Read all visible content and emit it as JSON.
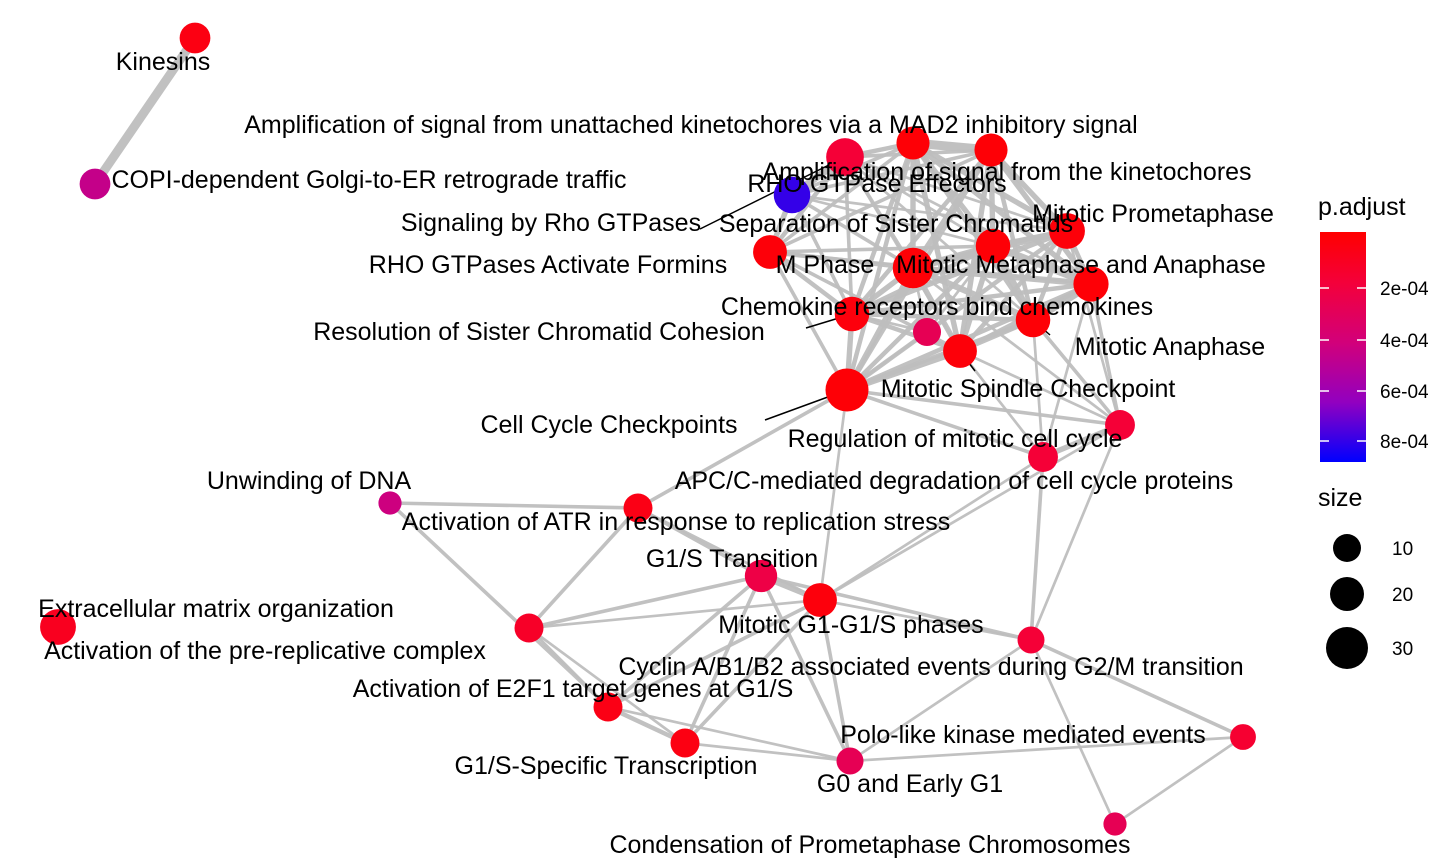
{
  "legend": {
    "color_title": "p.adjust",
    "color_ticks": [
      "2e-04",
      "4e-04",
      "6e-04",
      "8e-04"
    ],
    "size_title": "size",
    "size_ticks": [
      "10",
      "20",
      "30"
    ]
  },
  "colors": {
    "edge": "#bebebe",
    "label": "#000000",
    "gradient_low": "#ff0000",
    "gradient_high": "#0000ff"
  },
  "nodes": [
    {
      "id": "kinesins",
      "label": "Kinesins",
      "p": 8e-05,
      "size": 10
    },
    {
      "id": "copi",
      "label": "COPI-dependent Golgi-to-ER retrograde traffic",
      "p": 0.00048,
      "size": 10
    },
    {
      "id": "amp_mad2",
      "label": "Amplification  of signal from unattached  kinetochores via a MAD2  inhibitory signal",
      "p": 4e-05,
      "size": 13
    },
    {
      "id": "amp_kin",
      "label": "Amplification of signal from the kinetochores",
      "p": 4e-05,
      "size": 13
    },
    {
      "id": "rho_eff",
      "label": "RHO GTPase Effectors",
      "p": 0.0008,
      "size": 18
    },
    {
      "id": "sig_rho",
      "label": "Signaling by Rho GTPases",
      "p": 0.0002,
      "size": 20
    },
    {
      "id": "sep_sister",
      "label": "Separation of Sister Chromatids",
      "p": 4e-05,
      "size": 15
    },
    {
      "id": "mit_prometa",
      "label": "Mitotic Prometaphase",
      "p": 5e-05,
      "size": 17
    },
    {
      "id": "rho_formins",
      "label": "RHO GTPases Activate Formins",
      "p": 5e-05,
      "size": 14
    },
    {
      "id": "m_phase",
      "label": "M Phase",
      "p": 4e-05,
      "size": 25
    },
    {
      "id": "mit_meta",
      "label": "Mitotic Metaphase and Anaphase",
      "p": 4e-05,
      "size": 16
    },
    {
      "id": "chemokine",
      "label": "Chemokine receptors bind chemokines",
      "p": 0.0003,
      "size": 7
    },
    {
      "id": "res_sister",
      "label": "Resolution of Sister Chromatid Cohesion",
      "p": 6e-05,
      "size": 15
    },
    {
      "id": "mit_ana",
      "label": "Mitotic Anaphase",
      "p": 4e-05,
      "size": 15
    },
    {
      "id": "spindle",
      "label": "Mitotic Spindle Checkpoint",
      "p": 5e-05,
      "size": 14
    },
    {
      "id": "cc_check",
      "label": "Cell Cycle Checkpoints",
      "p": 4e-05,
      "size": 30
    },
    {
      "id": "reg_mit",
      "label": "Regulation of mitotic cell cycle",
      "p": 0.0002,
      "size": 9
    },
    {
      "id": "apc",
      "label": "APC/C-mediated degradation of cell cycle proteins",
      "p": 0.0002,
      "size": 9
    },
    {
      "id": "unwind",
      "label": "Unwinding of DNA",
      "p": 0.00045,
      "size": 3
    },
    {
      "id": "atr",
      "label": "Activation of ATR in response to replication stress",
      "p": 9e-05,
      "size": 8
    },
    {
      "id": "g1s_trans",
      "label": "G1/S Transition",
      "p": 0.00025,
      "size": 12
    },
    {
      "id": "ecm",
      "label": "Extracellular matrix organization",
      "p": 0.00012,
      "size": 17
    },
    {
      "id": "pre_rep",
      "label": "Activation of the pre-replicative complex",
      "p": 0.00015,
      "size": 8
    },
    {
      "id": "mit_g1",
      "label": "Mitotic G1-G1/S phases",
      "p": 6e-05,
      "size": 14
    },
    {
      "id": "cyclin",
      "label": "Cyclin A/B1/B2 associated events during G2/M transition",
      "p": 0.0002,
      "size": 6
    },
    {
      "id": "e2f1",
      "label": "Activation of E2F1 target genes at G1/S",
      "p": 9e-05,
      "size": 8
    },
    {
      "id": "polo",
      "label": "Polo-like kinase mediated events",
      "p": 0.00018,
      "size": 5
    },
    {
      "id": "g1s_spec",
      "label": "G1/S-Specific Transcription",
      "p": 8e-05,
      "size": 8
    },
    {
      "id": "g0",
      "label": "G0 and Early G1",
      "p": 0.0003,
      "size": 6
    },
    {
      "id": "condens",
      "label": "Condensation of Prometaphase Chromosomes",
      "p": 0.0003,
      "size": 3
    }
  ]
}
